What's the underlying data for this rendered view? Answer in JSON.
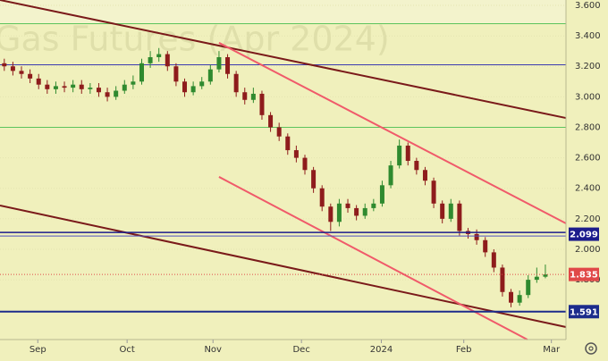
{
  "chart_data": {
    "type": "candlestick",
    "title": "Gas Futures (Apr 2024)",
    "x": [
      0,
      1,
      2,
      3,
      4,
      5,
      6,
      7,
      8,
      9,
      10,
      11,
      12,
      13,
      14,
      15,
      16,
      17,
      18,
      19,
      20,
      21,
      22,
      23,
      24,
      25,
      26,
      27,
      28,
      29,
      30,
      31,
      32,
      33,
      34,
      35,
      36,
      37,
      38,
      39,
      40,
      41,
      42,
      43,
      44,
      45,
      46,
      47,
      48,
      49,
      50,
      51,
      52,
      53,
      54,
      55,
      56,
      57,
      58,
      59,
      60,
      61,
      62,
      63
    ],
    "open": [
      3.22,
      3.2,
      3.17,
      3.15,
      3.12,
      3.08,
      3.05,
      3.07,
      3.06,
      3.08,
      3.05,
      3.06,
      3.03,
      3.0,
      3.04,
      3.08,
      3.1,
      3.22,
      3.26,
      3.28,
      3.2,
      3.1,
      3.03,
      3.07,
      3.1,
      3.18,
      3.26,
      3.15,
      3.03,
      2.98,
      3.02,
      2.88,
      2.8,
      2.74,
      2.65,
      2.6,
      2.52,
      2.4,
      2.28,
      2.18,
      2.3,
      2.27,
      2.22,
      2.27,
      2.3,
      2.42,
      2.55,
      2.68,
      2.58,
      2.52,
      2.45,
      2.3,
      2.2,
      2.3,
      2.12,
      2.1,
      2.06,
      1.98,
      1.88,
      1.72,
      1.65,
      1.7,
      1.8,
      1.82
    ],
    "high": [
      3.25,
      3.23,
      3.2,
      3.18,
      3.15,
      3.11,
      3.1,
      3.1,
      3.11,
      3.11,
      3.09,
      3.09,
      3.06,
      3.07,
      3.11,
      3.14,
      3.25,
      3.3,
      3.32,
      3.3,
      3.22,
      3.12,
      3.1,
      3.13,
      3.21,
      3.3,
      3.28,
      3.17,
      3.06,
      3.06,
      3.04,
      2.9,
      2.83,
      2.76,
      2.68,
      2.62,
      2.54,
      2.42,
      2.3,
      2.33,
      2.33,
      2.29,
      2.3,
      2.33,
      2.45,
      2.58,
      2.72,
      2.7,
      2.6,
      2.54,
      2.47,
      2.32,
      2.33,
      2.32,
      2.14,
      2.13,
      2.08,
      2.0,
      1.9,
      1.74,
      1.73,
      1.83,
      1.88,
      1.9
    ],
    "low": [
      3.17,
      3.14,
      3.12,
      3.09,
      3.05,
      3.02,
      3.02,
      3.03,
      3.03,
      3.02,
      3.02,
      3.0,
      2.97,
      2.98,
      3.02,
      3.05,
      3.08,
      3.19,
      3.23,
      3.17,
      3.07,
      3.0,
      3.01,
      3.05,
      3.08,
      3.16,
      3.12,
      3.0,
      2.95,
      2.96,
      2.85,
      2.77,
      2.71,
      2.62,
      2.57,
      2.49,
      2.37,
      2.25,
      2.12,
      2.15,
      2.24,
      2.19,
      2.2,
      2.25,
      2.28,
      2.4,
      2.53,
      2.55,
      2.49,
      2.42,
      2.27,
      2.17,
      2.18,
      2.09,
      2.07,
      2.03,
      1.95,
      1.85,
      1.69,
      1.62,
      1.63,
      1.68,
      1.78,
      1.81
    ],
    "close": [
      3.2,
      3.17,
      3.15,
      3.12,
      3.08,
      3.05,
      3.07,
      3.06,
      3.08,
      3.05,
      3.06,
      3.03,
      3.0,
      3.04,
      3.08,
      3.1,
      3.22,
      3.26,
      3.28,
      3.2,
      3.1,
      3.03,
      3.07,
      3.1,
      3.18,
      3.26,
      3.15,
      3.03,
      2.98,
      3.02,
      2.88,
      2.8,
      2.74,
      2.65,
      2.6,
      2.52,
      2.4,
      2.28,
      2.18,
      2.3,
      2.27,
      2.22,
      2.27,
      2.3,
      2.42,
      2.55,
      2.68,
      2.58,
      2.52,
      2.45,
      2.3,
      2.2,
      2.3,
      2.12,
      2.1,
      2.06,
      1.98,
      1.88,
      1.72,
      1.65,
      1.7,
      1.8,
      1.82,
      1.835
    ],
    "up_color": "#2f8a2f",
    "down_color": "#8e1c1c",
    "xlim": [
      -0.5,
      65.4
    ],
    "xticks": [
      {
        "value": 3.9,
        "label": "Sep"
      },
      {
        "value": 14.3,
        "label": "Oct"
      },
      {
        "value": 24.3,
        "label": "Nov"
      },
      {
        "value": 34.6,
        "label": "Dec"
      },
      {
        "value": 43.9,
        "label": "2024"
      },
      {
        "value": 53.5,
        "label": "Feb"
      },
      {
        "value": 63.7,
        "label": "Mar"
      }
    ],
    "ylim": [
      1.408,
      3.635
    ],
    "yticks": [
      {
        "value": 3.6,
        "label": "3.600"
      },
      {
        "value": 3.4,
        "label": "3.400"
      },
      {
        "value": 3.2,
        "label": "3.200"
      },
      {
        "value": 3.0,
        "label": "3.000"
      },
      {
        "value": 2.8,
        "label": "2.800"
      },
      {
        "value": 2.6,
        "label": "2.600"
      },
      {
        "value": 2.4,
        "label": "2.400"
      },
      {
        "value": 2.2,
        "label": "2.200"
      },
      {
        "value": 2.0,
        "label": "2.000"
      },
      {
        "value": 1.8,
        "label": "1.800"
      }
    ],
    "hlines": [
      {
        "value": 3.48,
        "color": "#5cc45c"
      },
      {
        "value": 3.21,
        "color": "#3a3ab0"
      },
      {
        "value": 2.8,
        "color": "#5cc45c"
      }
    ],
    "levels": [
      {
        "value": 2.099,
        "color": "#1c1c8c"
      },
      {
        "value": 1.835,
        "color": "#e04848"
      },
      {
        "value": 1.591,
        "color": "#1c2c8c"
      }
    ],
    "trendlines": [
      {
        "x": [
          -0.5,
          65.4
        ],
        "y": [
          3.635,
          2.861
        ],
        "color": "#7a1a1a"
      },
      {
        "x": [
          -0.5,
          65.4
        ],
        "y": [
          2.287,
          1.49
        ],
        "color": "#7a1a1a"
      },
      {
        "x": [
          25.0,
          65.4
        ],
        "y": [
          3.354,
          2.17
        ],
        "color": "#f05a6a"
      },
      {
        "x": [
          25.0,
          60.9
        ],
        "y": [
          2.475,
          1.408
        ],
        "color": "#f05a6a"
      }
    ]
  }
}
